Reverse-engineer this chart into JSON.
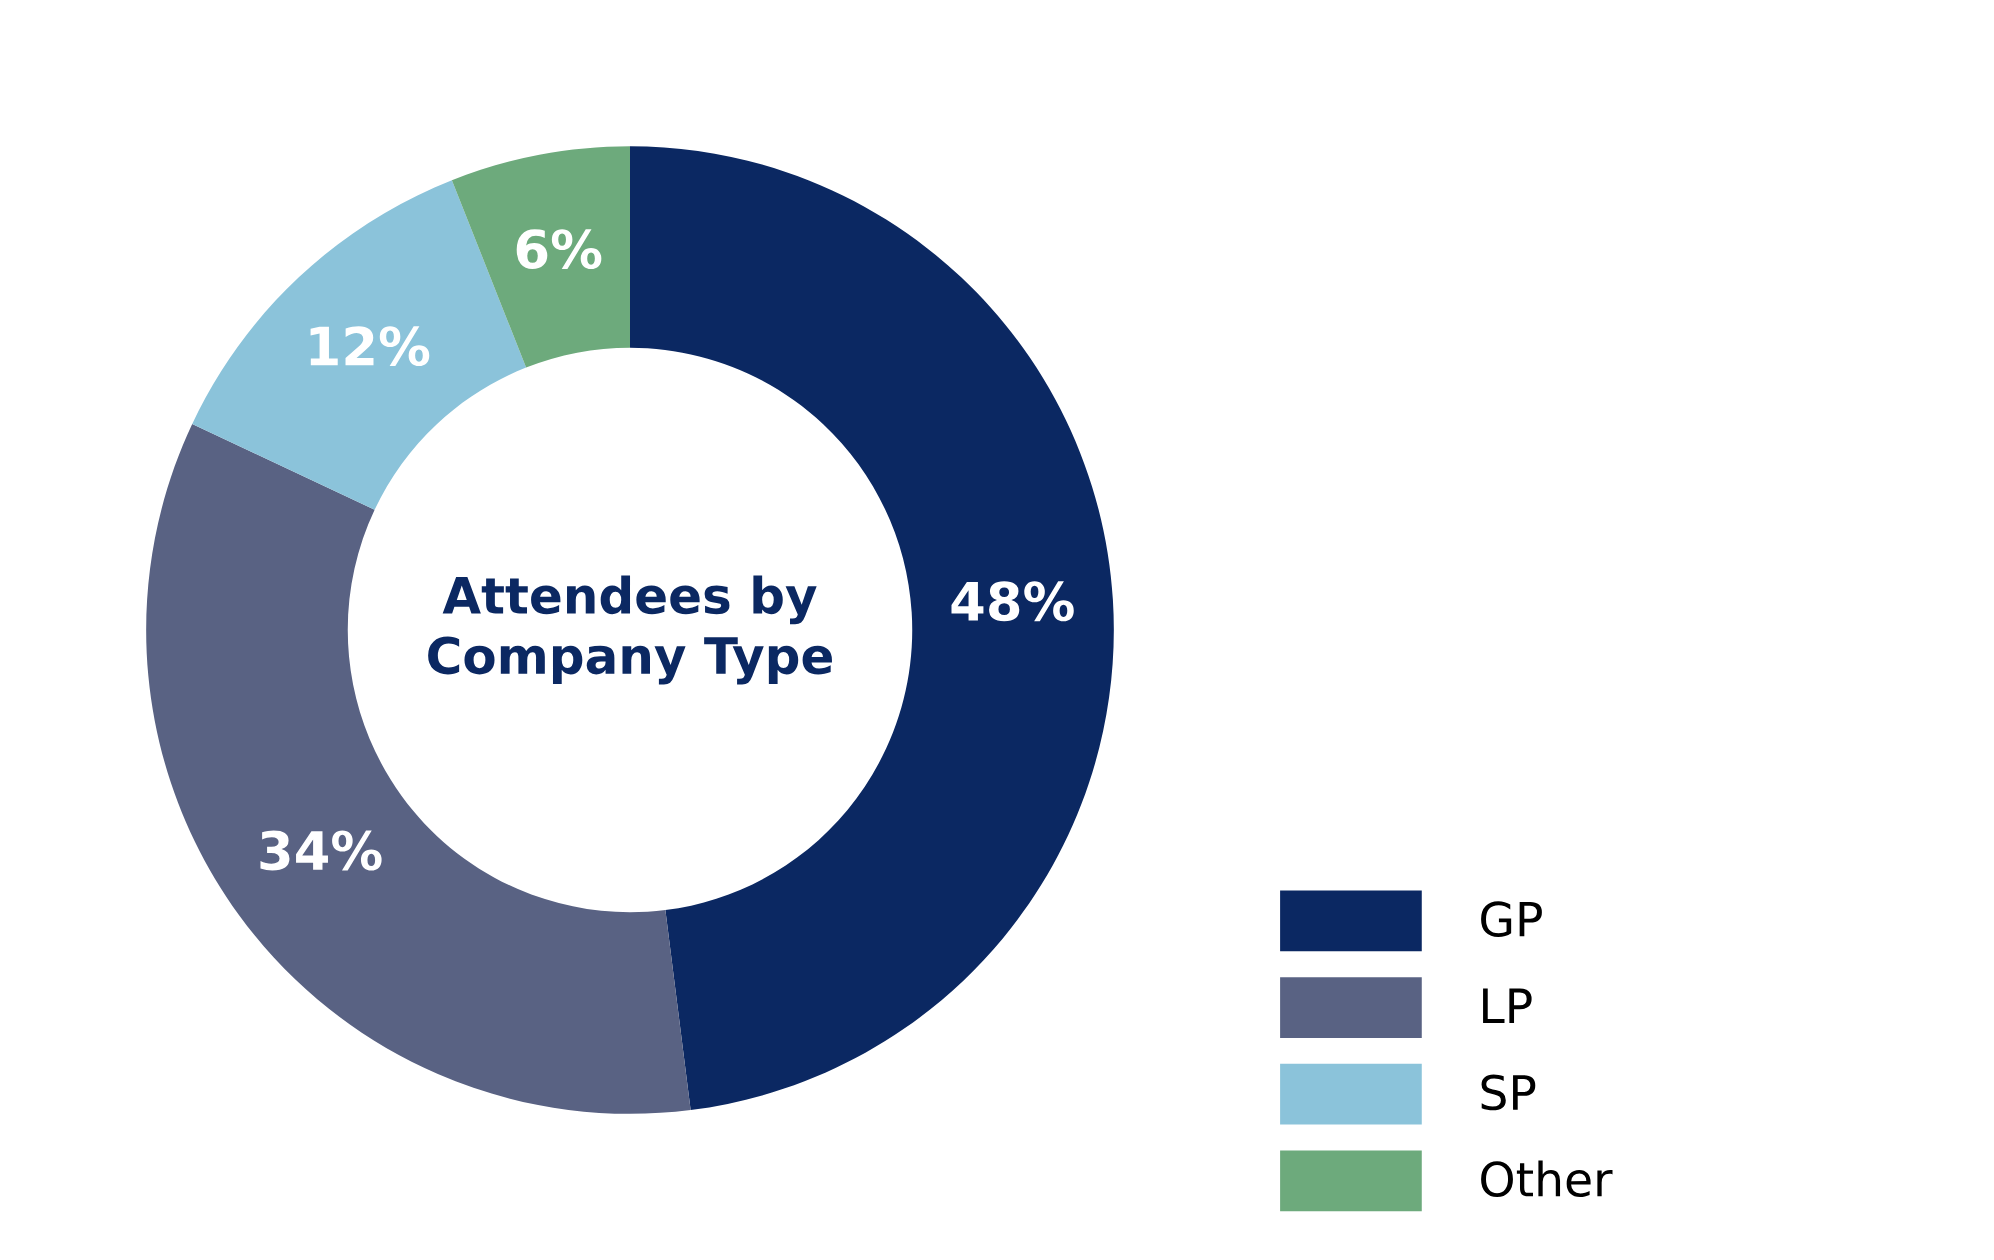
{
  "chart_data": {
    "type": "donut",
    "title": "Attendees by Company Type",
    "categories": [
      "GP",
      "LP",
      "SP",
      "Other"
    ],
    "values": [
      48,
      34,
      12,
      6
    ],
    "value_labels": [
      "48%",
      "34%",
      "12%",
      "6%"
    ],
    "colors": [
      "#0b2862",
      "#596283",
      "#8bc3da",
      "#6daa7c"
    ],
    "legend": "bottom right"
  }
}
